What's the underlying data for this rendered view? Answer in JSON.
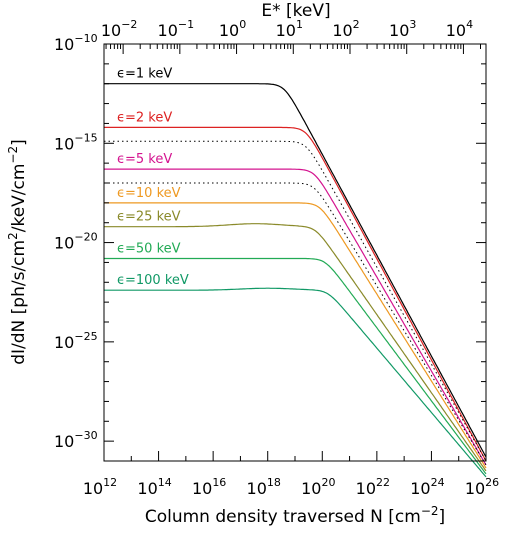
{
  "chart_data": {
    "type": "line",
    "title": "",
    "xlabel": "Column density traversed N [cm",
    "xlabel_exp": "−2",
    "xlabel_close": "]",
    "ylabel": "dI/dN  [ph/s/cm",
    "ylabel_mid_exp": "2",
    "ylabel_mid": "/keV/cm",
    "ylabel_exp": "−2",
    "ylabel_close": "]",
    "top_label": "E* [keV]",
    "x_scale": "log",
    "y_scale": "log",
    "xlim": [
      1000000000000.0,
      1e+26
    ],
    "ylim": [
      1e-31,
      1e-10
    ],
    "x_ticks": [
      {
        "base": "10",
        "exp": "12",
        "value": 1000000000000.0
      },
      {
        "base": "10",
        "exp": "14",
        "value": 100000000000000.0
      },
      {
        "base": "10",
        "exp": "16",
        "value": 1e+16
      },
      {
        "base": "10",
        "exp": "18",
        "value": 1e+18
      },
      {
        "base": "10",
        "exp": "20",
        "value": 1e+20
      },
      {
        "base": "10",
        "exp": "22",
        "value": 1e+22
      },
      {
        "base": "10",
        "exp": "24",
        "value": 1e+24
      },
      {
        "base": "10",
        "exp": "26",
        "value": 1e+26
      }
    ],
    "y_ticks": [
      {
        "base": "10",
        "exp": "−10",
        "value": 1e-10
      },
      {
        "base": "10",
        "exp": "−15",
        "value": 1e-15
      },
      {
        "base": "10",
        "exp": "−20",
        "value": 1e-20
      },
      {
        "base": "10",
        "exp": "−25",
        "value": 1e-25
      },
      {
        "base": "10",
        "exp": "−30",
        "value": 1e-30
      }
    ],
    "top_ticks": [
      {
        "base": "10",
        "exp": "−2",
        "value": 0.01
      },
      {
        "base": "10",
        "exp": "−1",
        "value": 0.1
      },
      {
        "base": "10",
        "exp": "0",
        "value": 1
      },
      {
        "base": "10",
        "exp": "1",
        "value": 10
      },
      {
        "base": "10",
        "exp": "2",
        "value": 100
      },
      {
        "base": "10",
        "exp": "3",
        "value": 1000
      },
      {
        "base": "10",
        "exp": "4",
        "value": 10000
      }
    ],
    "top_axis_range": [
      0.0046,
      25000
    ],
    "series": [
      {
        "name": "ϵ=1 keV",
        "color": "#000000",
        "plateau_log": -12.0,
        "n0_log": 18.6,
        "tail_log": -30.8,
        "dotted": false
      },
      {
        "name": "ϵ=2 keV",
        "color": "#dd2222",
        "plateau_log": -14.2,
        "n0_log": 19.4,
        "tail_log": -31.0,
        "dotted_log": -14.9
      },
      {
        "name": "ϵ=5 keV",
        "color": "#d4148f",
        "plateau_log": -16.3,
        "n0_log": 19.7,
        "tail_log": -31.2,
        "dotted_log": -17.0
      },
      {
        "name": "ϵ=10 keV",
        "color": "#ee9922",
        "plateau_log": -18.0,
        "n0_log": 19.9,
        "tail_log": -31.35
      },
      {
        "name": "ϵ=25 keV",
        "color": "#8a8a2a",
        "plateau_log": -19.2,
        "n0_log": 19.75,
        "tail_log": -31.5,
        "bump": 0.15
      },
      {
        "name": "ϵ=50 keV",
        "color": "#22aa55",
        "plateau_log": -20.8,
        "n0_log": 20.1,
        "tail_log": -31.65
      },
      {
        "name": "ϵ=100 keV",
        "color": "#119966",
        "plateau_log": -22.4,
        "n0_log": 20.2,
        "tail_log": -31.8,
        "bump": 0.1
      }
    ]
  }
}
